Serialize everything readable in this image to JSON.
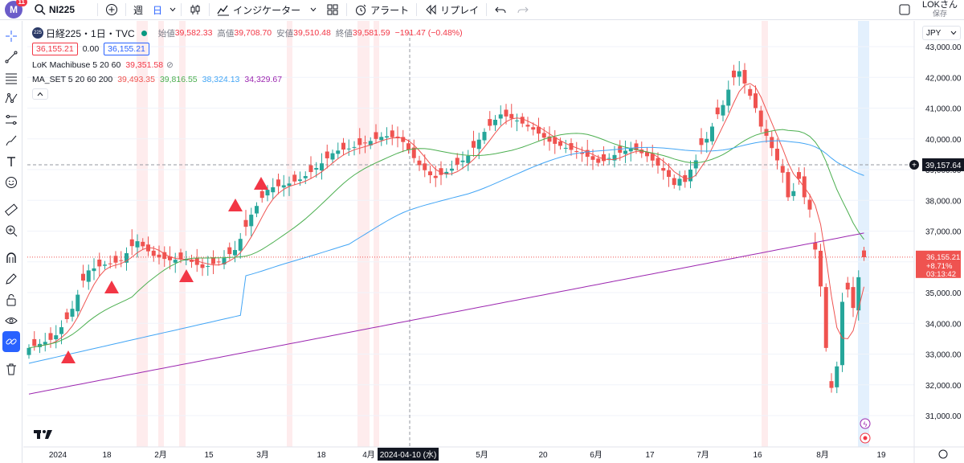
{
  "topbar": {
    "avatar_letter": "M",
    "notif_count": "11",
    "symbol": "NI225",
    "tf_week": "週",
    "tf_day": "日",
    "indicators": "インジケーター",
    "alert": "アラート",
    "replay": "リプレイ",
    "user": "LOKさん",
    "save": "保存"
  },
  "legend": {
    "badge": "225",
    "title": "日経225・1日・TVC",
    "o_label": "始値",
    "o_val": "39,582.33",
    "h_label": "高値",
    "h_val": "39,708.70",
    "l_label": "安値",
    "l_val": "39,510.48",
    "c_label": "終値",
    "c_val": "39,581.59",
    "chg": "−191.47 (−0.48%)",
    "sell": "36,155.21",
    "spread": "0.00",
    "buy": "36,155.21",
    "ind1_name": "LoK Machibuse 5 20 60",
    "ind1_val": "39,351.58",
    "ind2_name": "MA_SET 5 20 60 200",
    "ind2_v1": "39,493.35",
    "ind2_v2": "39,816.55",
    "ind2_v3": "38,324.13",
    "ind2_v4": "34,329.67"
  },
  "price_axis": {
    "currency": "JPY",
    "labels": [
      "43,000.00",
      "42,000.00",
      "41,000.00",
      "40,000.00",
      "39,000.00",
      "38,000.00",
      "37,000.00",
      "36,000.00",
      "35,000.00",
      "34,000.00",
      "33,000.00",
      "32,000.00",
      "31,000.00"
    ],
    "crosshair_price": "39,157.64",
    "last_price": "36,155.21",
    "last_change": "+8.71%",
    "countdown": "03:13:42"
  },
  "time_axis": {
    "labels": [
      "2024",
      "18",
      "2月",
      "15",
      "3月",
      "18",
      "4月",
      "5月",
      "20",
      "6月",
      "17",
      "7月",
      "16",
      "8月",
      "19"
    ],
    "crosshair_date": "2024-04-10 (水)"
  },
  "colors": {
    "up": "#26a69a",
    "down": "#ef5350",
    "ma5": "#ef5350",
    "ma20": "#4caf50",
    "ma60": "#42a5f5",
    "ma200": "#9c27b0",
    "accent": "#2962ff"
  }
}
